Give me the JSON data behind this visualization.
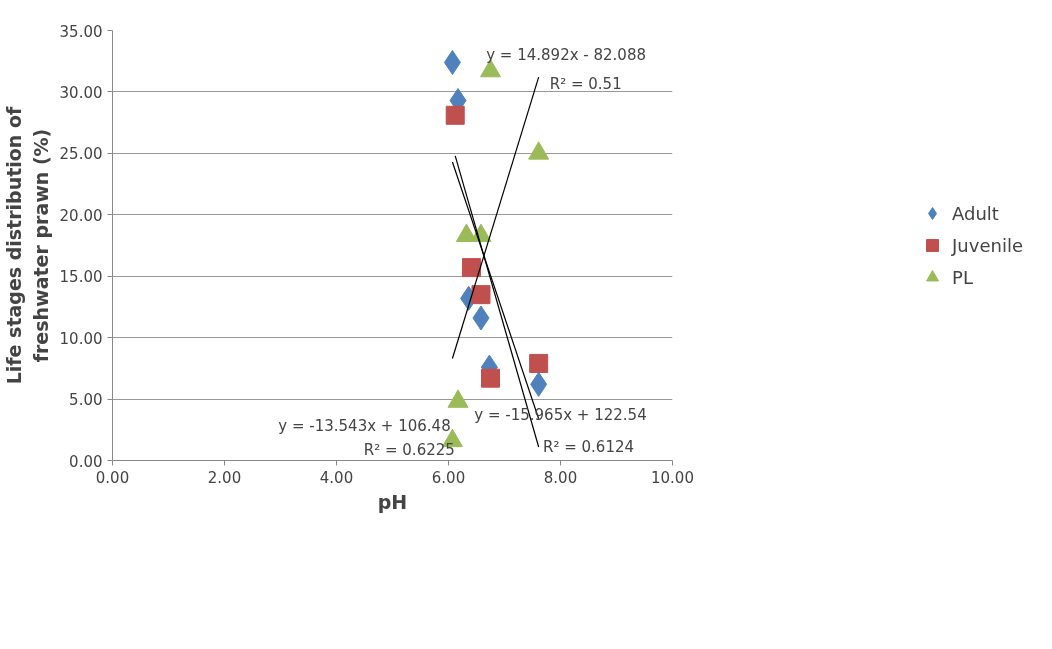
{
  "chart_data": {
    "type": "scatter",
    "xlabel": "pH",
    "ylabel": "Life stages distribution of freshwater prawn (%)",
    "xlim": [
      0,
      10
    ],
    "ylim": [
      0,
      35
    ],
    "xticks": [
      {
        "value": 0,
        "label": "0.00"
      },
      {
        "value": 2,
        "label": "2.00"
      },
      {
        "value": 4,
        "label": "4.00"
      },
      {
        "value": 6,
        "label": "6.00"
      },
      {
        "value": 8,
        "label": "8.00"
      },
      {
        "value": 10,
        "label": "10.00"
      }
    ],
    "yticks": [
      {
        "value": 0,
        "label": "0.00"
      },
      {
        "value": 5,
        "label": "5.00"
      },
      {
        "value": 10,
        "label": "10.00"
      },
      {
        "value": 15,
        "label": "15.00"
      },
      {
        "value": 20,
        "label": "20.00"
      },
      {
        "value": 25,
        "label": "25.00"
      },
      {
        "value": 30,
        "label": "30.00"
      },
      {
        "value": 35,
        "label": "35.00"
      }
    ],
    "grid": "y",
    "legend": "right",
    "series": [
      {
        "name": "Adult",
        "color": "#4f81bd",
        "marker": "diamond",
        "x": [
          6.07,
          6.17,
          6.36,
          6.58,
          6.73,
          7.61
        ],
        "values": [
          32.4,
          29.3,
          13.2,
          11.6,
          7.6,
          6.2
        ]
      },
      {
        "name": "Juvenile",
        "color": "#c0504d",
        "marker": "square",
        "x": [
          6.12,
          6.41,
          6.58,
          6.75,
          7.61
        ],
        "values": [
          28.1,
          15.7,
          13.5,
          6.7,
          7.9
        ]
      },
      {
        "name": "PL",
        "color": "#9bbb59",
        "marker": "triangle",
        "x": [
          6.75,
          7.61,
          6.32,
          6.58,
          6.17,
          6.07
        ],
        "values": [
          31.7,
          25.0,
          18.3,
          18.3,
          4.8,
          1.6
        ]
      },
      {
        "type": "line",
        "color": "#000000",
        "x": [
          6.07,
          7.61
        ],
        "values": [
          8.3,
          31.2
        ]
      },
      {
        "type": "line",
        "color": "#000000",
        "x": [
          6.07,
          7.61
        ],
        "values": [
          24.3,
          3.4
        ]
      },
      {
        "type": "line",
        "color": "#000000",
        "x": [
          6.12,
          7.61
        ],
        "values": [
          24.8,
          1.1
        ]
      }
    ],
    "annotations": [
      "y = 14.892x - 82.088",
      "R² = 0.51",
      "y = -13.543x + 106.48",
      "y = -15.965x + 122.54",
      "R² = 0.6225",
      "R² = 0.6124"
    ]
  }
}
